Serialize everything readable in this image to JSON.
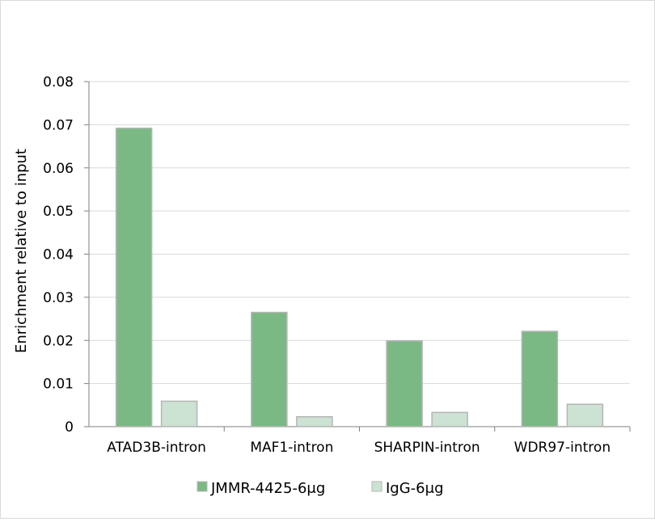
{
  "chart_data": {
    "type": "bar",
    "title": "",
    "xlabel": "",
    "ylabel": "Enrichment relative to input",
    "ylim": [
      0,
      0.08
    ],
    "yticks": [
      "0",
      "0.01",
      "0.02",
      "0.03",
      "0.04",
      "0.05",
      "0.06",
      "0.07",
      "0.08"
    ],
    "grid": true,
    "legend_position": "bottom",
    "categories": [
      "ATAD3B-intron",
      "MAF1-intron",
      "SHARPIN-intron",
      "WDR97-intron"
    ],
    "series": [
      {
        "name": "JMMR-4425-6μg",
        "color": "#7bb984",
        "border": "#b5b5b5",
        "values": [
          0.0692,
          0.0265,
          0.0199,
          0.0221
        ]
      },
      {
        "name": "IgG-6μg",
        "color": "#cce2d3",
        "border": "#b5b5b5",
        "values": [
          0.0059,
          0.0023,
          0.0033,
          0.0052
        ]
      }
    ]
  }
}
